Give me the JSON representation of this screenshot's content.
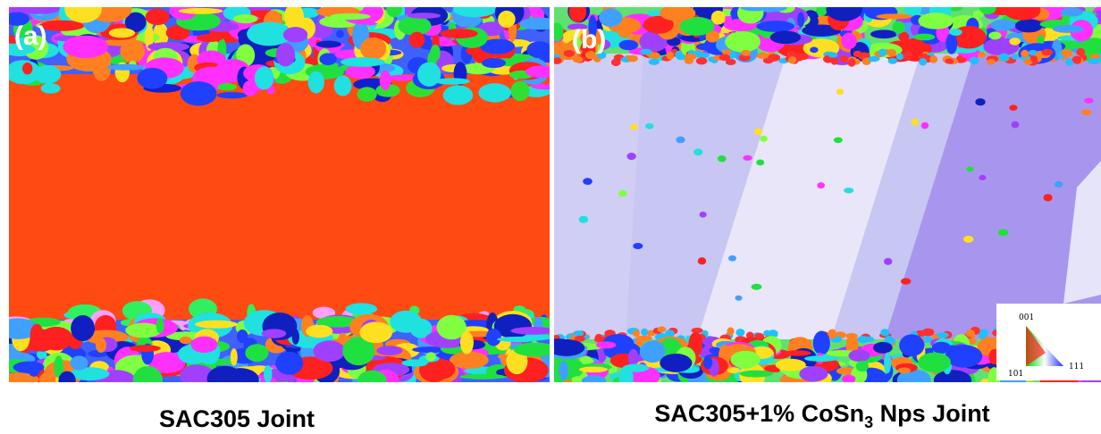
{
  "panels": [
    {
      "label": "(a)",
      "caption": "SAC305 Joint"
    },
    {
      "label": "(b)",
      "caption_main": "SAC305+1% CoSn",
      "caption_sub": "3",
      "caption_end": " Nps Joint"
    }
  ],
  "legend": {
    "labels": [
      "001",
      "101",
      "111"
    ]
  }
}
